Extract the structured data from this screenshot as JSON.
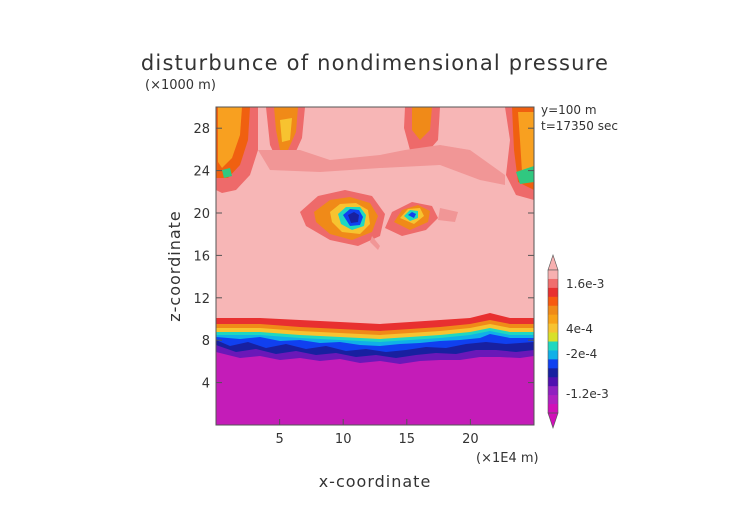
{
  "chart_data": {
    "type": "heatmap",
    "title": "disturbunce of nondimensional pressure",
    "xlabel": "x-coordinate",
    "ylabel": "z-coordinate",
    "x_unit": "(×1E4 m)",
    "y_unit": "(×1000 m)",
    "annotations": [
      "y=100 m",
      "t=17350 sec"
    ],
    "xlim": [
      0,
      25
    ],
    "ylim": [
      0,
      30
    ],
    "x_ticks": [
      5,
      10,
      15,
      20
    ],
    "y_ticks": [
      4,
      8,
      12,
      16,
      20,
      24,
      28
    ],
    "colorbar_labels": [
      "1.6e-3",
      "4e-4",
      "-2e-4",
      "-1.2e-3"
    ],
    "colorbar_colors": [
      "#f7b0b0",
      "#f06e6e",
      "#e83030",
      "#f75a10",
      "#f08a18",
      "#f8a318",
      "#f7c330",
      "#d8e028",
      "#20d8c0",
      "#10b0e8",
      "#1040f0",
      "#1820a0",
      "#5010b0",
      "#9020c0",
      "#b020c0",
      "#d010b8"
    ],
    "colors": {
      "background_field": "#f7b6b6",
      "low_layer": "#c41cb8"
    }
  }
}
